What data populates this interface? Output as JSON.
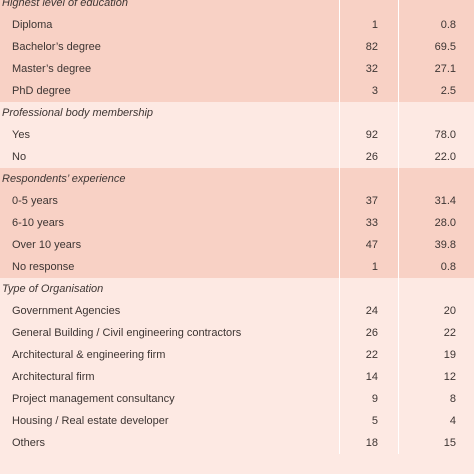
{
  "sections": [
    {
      "title": "Highest level of education",
      "shade": "shade",
      "rows": [
        {
          "label": "Diploma",
          "n": "1",
          "p": "0.8"
        },
        {
          "label": "Bachelor’s degree",
          "n": "82",
          "p": "69.5"
        },
        {
          "label": "Master’s degree",
          "n": "32",
          "p": "27.1"
        },
        {
          "label": "PhD degree",
          "n": "3",
          "p": "2.5"
        }
      ]
    },
    {
      "title": "Professional body membership",
      "shade": "light",
      "rows": [
        {
          "label": "Yes",
          "n": "92",
          "p": "78.0"
        },
        {
          "label": "No",
          "n": "26",
          "p": "22.0"
        }
      ]
    },
    {
      "title": "Respondents’ experience",
      "shade": "shade",
      "rows": [
        {
          "label": "0-5 years",
          "n": "37",
          "p": "31.4"
        },
        {
          "label": "6-10 years",
          "n": "33",
          "p": "28.0"
        },
        {
          "label": "Over 10 years",
          "n": "47",
          "p": "39.8"
        },
        {
          "label": "No response",
          "n": "1",
          "p": "0.8"
        }
      ]
    },
    {
      "title": "Type of Organisation",
      "shade": "light",
      "rows": [
        {
          "label": "Government Agencies",
          "n": "24",
          "p": "20"
        },
        {
          "label": "General Building / Civil engineering contractors",
          "n": "26",
          "p": "22"
        },
        {
          "label": "Architectural & engineering firm",
          "n": "22",
          "p": "19"
        },
        {
          "label": "Architectural firm",
          "n": "14",
          "p": "12"
        },
        {
          "label": "Project management consultancy",
          "n": "9",
          "p": "8"
        },
        {
          "label": "Housing / Real estate developer",
          "n": "5",
          "p": "4"
        },
        {
          "label": "Others",
          "n": "18",
          "p": "15"
        }
      ]
    }
  ],
  "colors": {
    "shade": "#f8d1c5",
    "light": "#fde9e3",
    "divider": "#ffffff",
    "text": "#3d3533"
  }
}
